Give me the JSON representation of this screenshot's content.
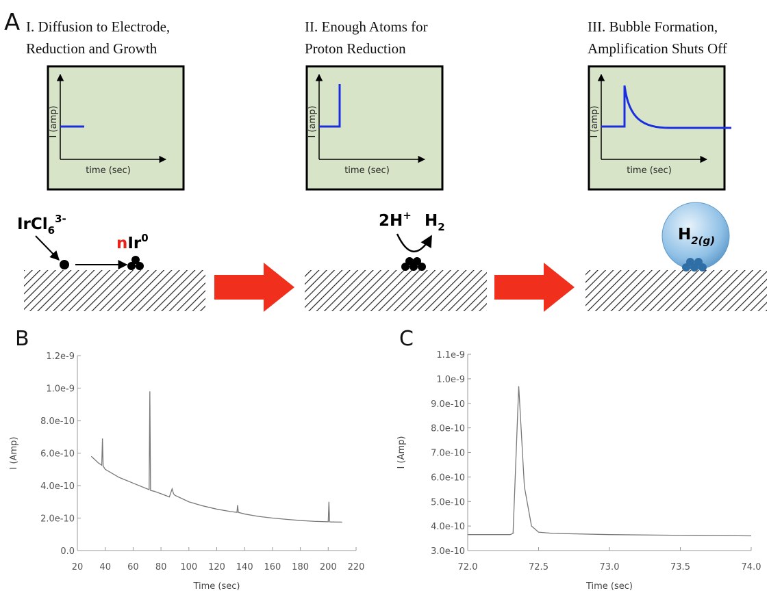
{
  "panel_a": {
    "label": "A",
    "steps": [
      {
        "title": [
          "I. Diffusion to Electrode,",
          "Reduction and Growth"
        ],
        "ylabel": "I (amp)",
        "xlabel": "time (sec)"
      },
      {
        "title": [
          "II. Enough Atoms for",
          "Proton Reduction"
        ],
        "ylabel": "I (amp)",
        "xlabel": "time (sec)"
      },
      {
        "title": [
          "III. Bubble Formation,",
          "Amplification Shuts Off"
        ],
        "ylabel": "I (amp)",
        "xlabel": "time (sec)"
      }
    ],
    "species": {
      "precursor": {
        "base": "IrCl",
        "sub": "6",
        "sup": "3-"
      },
      "cluster": {
        "coef": "n",
        "base": "Ir",
        "sup": "0"
      },
      "protons": {
        "base": "2H",
        "sup": "+"
      },
      "product": {
        "base": "H",
        "sub": "2"
      },
      "bubble": {
        "base": "H",
        "sub": "2(g)"
      }
    }
  },
  "chart_data": [
    {
      "type": "line",
      "panel_label": "B",
      "x_label": "Time (sec)",
      "y_label": "I (Amp)",
      "color": "#777777",
      "x": [
        30,
        35,
        37.5,
        38,
        38.5,
        40,
        50,
        60,
        70,
        71.5,
        72,
        72.5,
        75,
        80,
        86,
        88,
        89,
        90,
        100,
        110,
        120,
        130,
        134.5,
        135,
        135.5,
        140,
        150,
        160,
        170,
        180,
        190,
        200,
        200.5,
        201,
        201.5,
        210
      ],
      "values": [
        5.8e-10,
        5.4e-10,
        5.25e-10,
        6.9e-10,
        5.2e-10,
        5e-10,
        4.5e-10,
        4.15e-10,
        3.8e-10,
        3.75e-10,
        9.8e-10,
        3.7e-10,
        3.65e-10,
        3.5e-10,
        3.3e-10,
        3.8e-10,
        3.5e-10,
        3.4e-10,
        3e-10,
        2.75e-10,
        2.55e-10,
        2.4e-10,
        2.35e-10,
        2.8e-10,
        2.35e-10,
        2.25e-10,
        2.1e-10,
        2e-10,
        1.92e-10,
        1.85e-10,
        1.8e-10,
        1.77e-10,
        3e-10,
        1.77e-10,
        1.76e-10,
        1.75e-10
      ],
      "xlim": [
        20,
        220
      ],
      "xticks": [
        20,
        40,
        60,
        80,
        100,
        120,
        140,
        160,
        180,
        200,
        220
      ],
      "ylim": [
        0,
        1.2e-09
      ],
      "yticks": [
        {
          "value": 0,
          "label": "0.0"
        },
        {
          "value": 2e-10,
          "label": "2.0e-10"
        },
        {
          "value": 4e-10,
          "label": "4.0e-10"
        },
        {
          "value": 6e-10,
          "label": "6.0e-10"
        },
        {
          "value": 8e-10,
          "label": "8.0e-10"
        },
        {
          "value": 1e-09,
          "label": "1.0e-9"
        },
        {
          "value": 1.2e-09,
          "label": "1.2e-9"
        }
      ]
    },
    {
      "type": "line",
      "panel_label": "C",
      "x_label": "Time (sec)",
      "y_label": "I (Amp)",
      "color": "#777777",
      "x": [
        72.0,
        72.3,
        72.32,
        72.36,
        72.4,
        72.45,
        72.5,
        72.6,
        73.0,
        73.5,
        74.0
      ],
      "values": [
        3.65e-10,
        3.65e-10,
        3.7e-10,
        9.7e-10,
        5.6e-10,
        4e-10,
        3.75e-10,
        3.7e-10,
        3.65e-10,
        3.62e-10,
        3.6e-10
      ],
      "xlim": [
        72,
        74
      ],
      "xticks": [
        {
          "value": 72,
          "label": "72.0"
        },
        {
          "value": 72.5,
          "label": "72.5"
        },
        {
          "value": 73,
          "label": "73.0"
        },
        {
          "value": 73.5,
          "label": "73.5"
        },
        {
          "value": 74,
          "label": "74.0"
        }
      ],
      "ylim": [
        3e-10,
        1.1e-09
      ],
      "yticks": [
        {
          "value": 3e-10,
          "label": "3.0e-10"
        },
        {
          "value": 4e-10,
          "label": "4.0e-10"
        },
        {
          "value": 5e-10,
          "label": "5.0e-10"
        },
        {
          "value": 6e-10,
          "label": "6.0e-10"
        },
        {
          "value": 7e-10,
          "label": "7.0e-10"
        },
        {
          "value": 8e-10,
          "label": "8.0e-10"
        },
        {
          "value": 9e-10,
          "label": "9.0e-10"
        },
        {
          "value": 1e-09,
          "label": "1.0e-9"
        },
        {
          "value": 1.1e-09,
          "label": "1.1e-9"
        }
      ]
    }
  ]
}
